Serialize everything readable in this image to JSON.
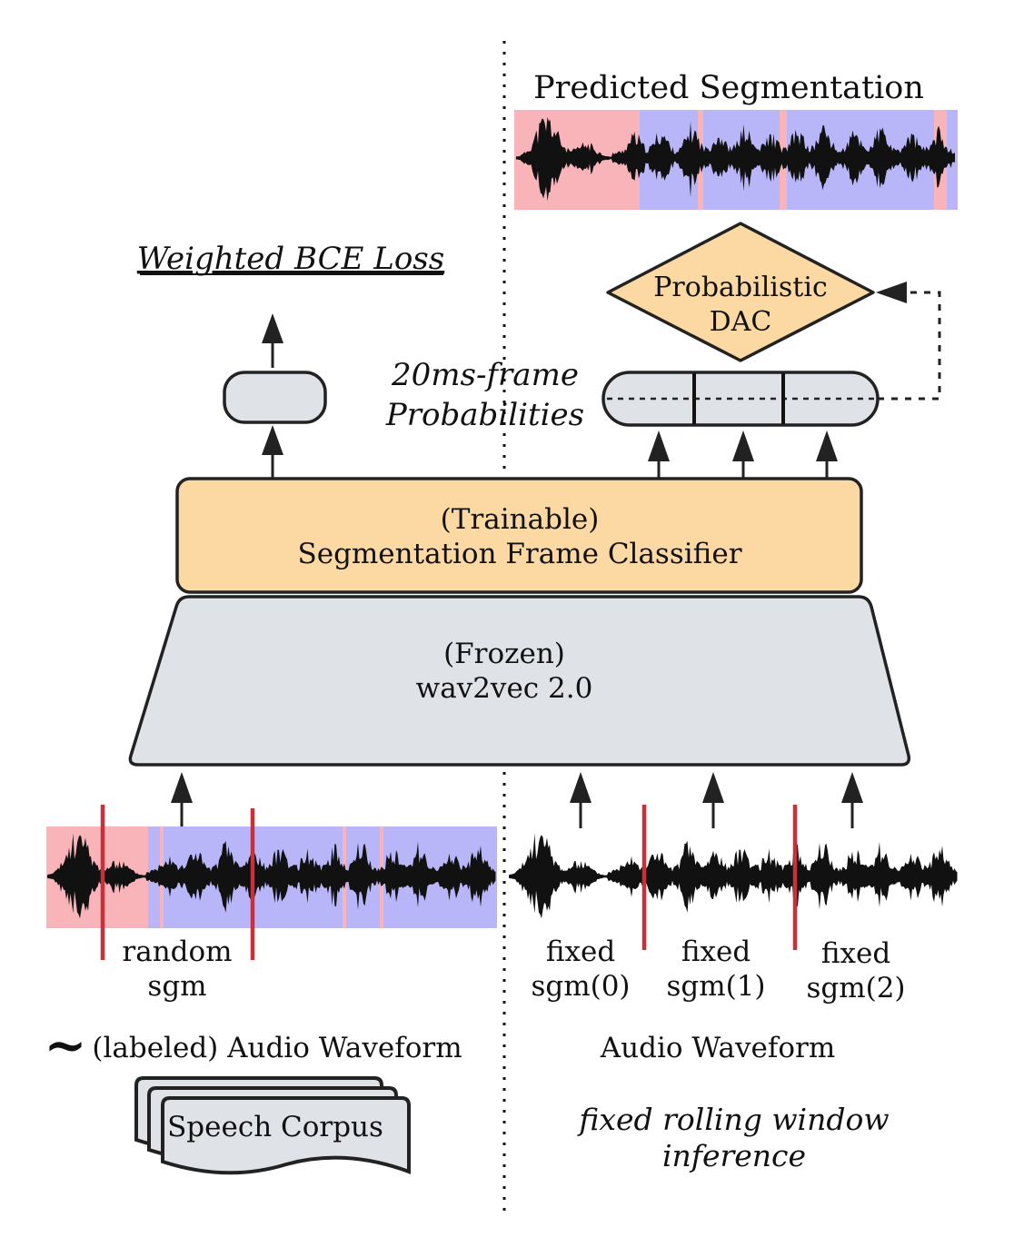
{
  "left": {
    "loss_label": "Weighted BCE Loss",
    "segment_label_1": "random",
    "segment_label_2": "sgm",
    "waveform_label": "(labeled) Audio Waveform",
    "tilde": "~",
    "corpus_label": "Speech Corpus"
  },
  "right": {
    "title": "Predicted Segmentation",
    "dac_line1": "Probabilistic",
    "dac_line2": "DAC",
    "prob_line1": "20ms-frame",
    "prob_line2": "Probabilities",
    "segments": [
      {
        "line1": "fixed",
        "line2": "sgm(0)"
      },
      {
        "line1": "fixed",
        "line2": "sgm(1)"
      },
      {
        "line1": "fixed",
        "line2": "sgm(2)"
      }
    ],
    "waveform_label": "Audio Waveform",
    "inference_line1": "fixed rolling window",
    "inference_line2": "inference"
  },
  "classifier": {
    "line1": "(Trainable)",
    "line2": "Segmentation Frame Classifier"
  },
  "encoder": {
    "line1": "(Frozen)",
    "line2": "wav2vec 2.0"
  },
  "colors": {
    "orange": "#fcd9a3",
    "gray": "#dfe2e6",
    "pink": "#f8b4b8",
    "blue": "#b8b6f8",
    "red": "#c8303a",
    "ink": "#111111"
  }
}
